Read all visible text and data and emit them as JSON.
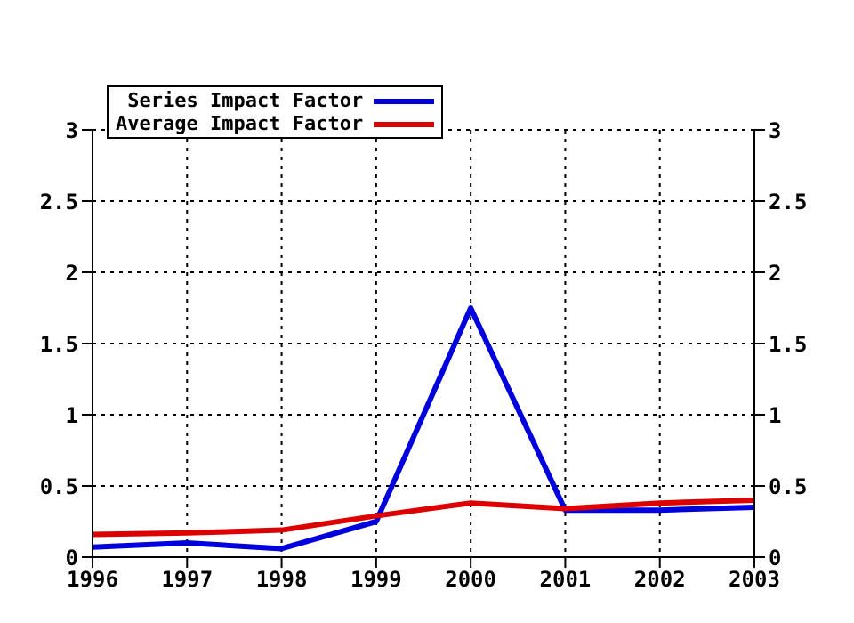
{
  "chart_data": {
    "type": "line",
    "x": [
      1996,
      1997,
      1998,
      1999,
      2000,
      2001,
      2002,
      2003
    ],
    "series": [
      {
        "name": "Series Impact Factor",
        "color": "#0000dd",
        "values": [
          0.07,
          0.1,
          0.06,
          0.25,
          1.75,
          0.33,
          0.33,
          0.35
        ]
      },
      {
        "name": "Average Impact Factor",
        "color": "#dd0000",
        "values": [
          0.16,
          0.17,
          0.19,
          0.29,
          0.38,
          0.34,
          0.38,
          0.4
        ]
      }
    ],
    "xlim": [
      1996,
      2003
    ],
    "xticks": [
      1996,
      1997,
      1998,
      1999,
      2000,
      2001,
      2002,
      2003
    ],
    "ylim": [
      0,
      3
    ],
    "yticks": [
      0,
      {
        "value": 0.5,
        "label": "0.5"
      },
      1,
      {
        "value": 1.5,
        "label": "1.5"
      },
      2,
      {
        "value": 2.5,
        "label": "2.5"
      },
      3
    ],
    "y2lim": [
      0,
      3
    ],
    "y2ticks": [
      0,
      {
        "value": 0.5,
        "label": "0.5"
      },
      1,
      {
        "value": 1.5,
        "label": "1.5"
      },
      2,
      {
        "value": 2.5,
        "label": "2.5"
      },
      3
    ],
    "grid": true,
    "legend": "top left",
    "marker": "none",
    "line_style": "solid"
  }
}
